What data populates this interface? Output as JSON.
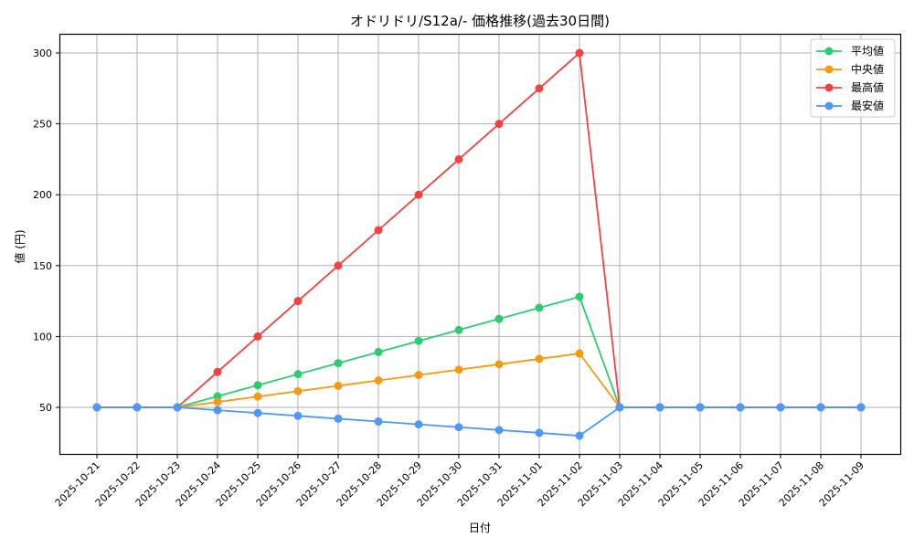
{
  "chart_data": {
    "type": "line",
    "title": "オドリドリ/S12a/- 価格推移(過去30日間)",
    "xlabel": "日付",
    "ylabel": "値 (円)",
    "ylim": [
      16,
      314
    ],
    "yticks": [
      50,
      100,
      150,
      200,
      250,
      300
    ],
    "grid": true,
    "legend_position": "upper right",
    "categories": [
      "2025-10-21",
      "2025-10-22",
      "2025-10-23",
      "2025-10-24",
      "2025-10-25",
      "2025-10-26",
      "2025-10-27",
      "2025-10-28",
      "2025-10-29",
      "2025-10-30",
      "2025-10-31",
      "2025-11-01",
      "2025-11-02",
      "2025-11-03",
      "2025-11-04",
      "2025-11-05",
      "2025-11-06",
      "2025-11-07",
      "2025-11-08",
      "2025-11-09"
    ],
    "series": [
      {
        "name": "平均値",
        "color": "#2ecc71",
        "values": [
          50,
          50,
          50,
          57.8,
          65.6,
          73.4,
          81.2,
          89,
          96.8,
          104.6,
          112.4,
          120.2,
          128,
          50,
          50,
          50,
          50,
          50,
          50,
          50
        ]
      },
      {
        "name": "中央値",
        "color": "#f39c12",
        "values": [
          50,
          50,
          50,
          53.8,
          57.6,
          61.4,
          65.2,
          69,
          72.8,
          76.6,
          80.4,
          84.2,
          88,
          50,
          50,
          50,
          50,
          50,
          50,
          50
        ]
      },
      {
        "name": "最高値",
        "color": "#ef4444",
        "values": [
          50,
          50,
          50,
          75,
          100,
          125,
          150,
          175,
          200,
          225,
          250,
          275,
          300,
          50,
          50,
          50,
          50,
          50,
          50,
          50
        ]
      },
      {
        "name": "最安値",
        "color": "#4f98f5",
        "values": [
          50,
          50,
          50,
          48,
          46,
          44,
          42,
          40,
          38,
          36,
          34,
          32,
          30,
          50,
          50,
          50,
          50,
          50,
          50,
          50
        ]
      }
    ]
  }
}
